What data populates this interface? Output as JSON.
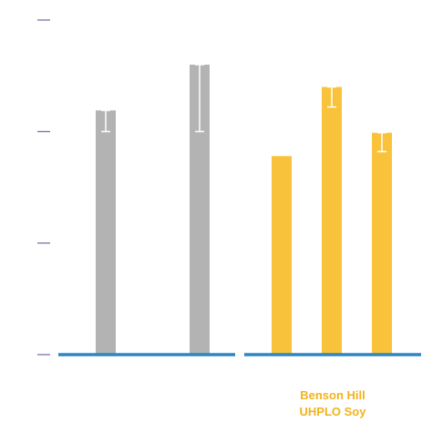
{
  "chart_data": {
    "type": "bar",
    "title": "",
    "xlabel": "",
    "ylabel": "",
    "ylim": [
      0,
      3
    ],
    "y_ticks": [
      0,
      1,
      2,
      3
    ],
    "y_tick_labels_visible": false,
    "grid": false,
    "legend": "none",
    "groups": [
      {
        "label_lines": [],
        "color": "#b3b3b3",
        "bars": [
          {
            "value": 2.19,
            "error_low": 0.19,
            "error_high": 0.0
          },
          {
            "value": 2.6,
            "error_low": 0.6,
            "error_high": 0.0
          }
        ]
      },
      {
        "label_lines": [
          "Benson Hill",
          "UHPLO Soy"
        ],
        "color": "#f8c33b",
        "bars": [
          {
            "value": 1.78,
            "error_low": 0.0,
            "error_high": 0.0
          },
          {
            "value": 2.4,
            "error_low": 0.18,
            "error_high": 0.0
          },
          {
            "value": 1.99,
            "error_low": 0.17,
            "error_high": 0.0
          }
        ]
      }
    ],
    "colors": {
      "baseline": "#2e86c1",
      "tick": "#4a4f8f",
      "label": "#f2b31b",
      "error_bar": "#ffffff"
    }
  }
}
